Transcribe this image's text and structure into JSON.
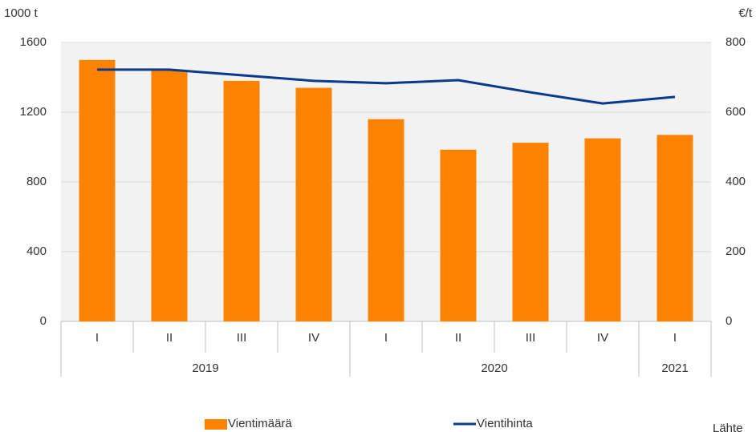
{
  "chart_data": {
    "type": "bar-line",
    "y_label": "1000 t",
    "y2_label": "€/t",
    "groups": [
      {
        "name": "2019",
        "categories": [
          "I",
          "II",
          "III",
          "IV"
        ]
      },
      {
        "name": "2020",
        "categories": [
          "I",
          "II",
          "III",
          "IV"
        ]
      },
      {
        "name": "2021",
        "categories": [
          "I"
        ]
      }
    ],
    "series": [
      {
        "name": "Vientimäärä",
        "type": "bar",
        "color": "#ff8300",
        "values": [
          1500,
          1440,
          1380,
          1340,
          1160,
          985,
          1025,
          1050,
          1070
        ]
      },
      {
        "name": "Vientihinta",
        "type": "line",
        "axis": "y2",
        "color": "#0a3a8c",
        "values": [
          722,
          722,
          706,
          690,
          683,
          692,
          657,
          625,
          644
        ]
      }
    ],
    "ylim": [
      0,
      1600
    ],
    "yticks": [
      0,
      400,
      800,
      1200,
      1600
    ],
    "y2lim": [
      0,
      800
    ],
    "y2ticks": [
      0,
      200,
      400,
      600,
      800
    ],
    "grid": true,
    "legend": "bottom",
    "source": "Lähte"
  }
}
